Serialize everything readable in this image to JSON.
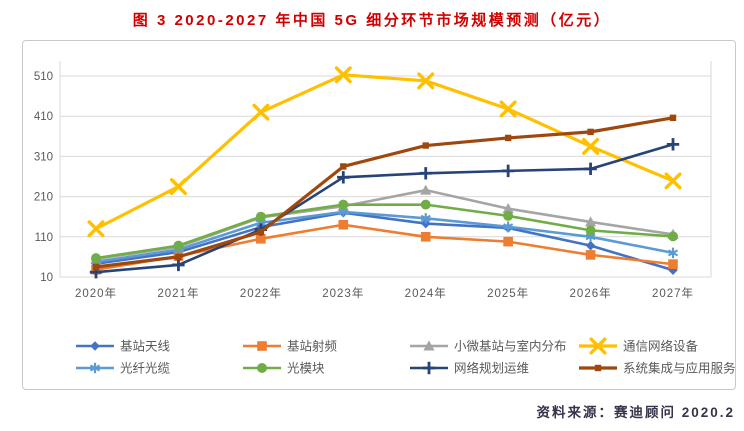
{
  "title": "图 3 2020-2027 年中国 5G 细分环节市场规模预测（亿元）",
  "source_note": "资料来源：赛迪顾问  2020.2",
  "colors": {
    "title_red": "#d00000",
    "grid_gray": "#d9d9d9",
    "axis_text": "#595959",
    "source_text": "#35354a"
  },
  "chart_data": {
    "type": "line",
    "title": "图 3 2020-2027 年中国 5G 细分环节市场规模预测（亿元）",
    "categories": [
      "2020年",
      "2021年",
      "2022年",
      "2023年",
      "2024年",
      "2025年",
      "2026年",
      "2027年"
    ],
    "y_ticks": [
      10,
      110,
      210,
      310,
      410,
      510
    ],
    "ylim": [
      10,
      545
    ],
    "grid": true,
    "legend_position": "bottom",
    "series": [
      {
        "name": "基站天线",
        "key": "base-station-antenna",
        "color": "#4472C4",
        "marker": "diamond",
        "values": [
          43,
          72,
          134,
          170,
          143,
          132,
          88,
          27
        ]
      },
      {
        "name": "基站射频",
        "key": "base-station-rf",
        "color": "#ED7D31",
        "marker": "square",
        "values": [
          28,
          62,
          105,
          140,
          110,
          98,
          65,
          42
        ]
      },
      {
        "name": "小微基站与室内分布",
        "key": "small-cell-indoor",
        "color": "#A5A5A5",
        "marker": "triangle",
        "values": [
          55,
          85,
          158,
          186,
          226,
          180,
          147,
          116
        ]
      },
      {
        "name": "通信网络设备",
        "key": "network-equipment",
        "color": "#FFC000",
        "marker": "x",
        "values": [
          130,
          235,
          420,
          513,
          498,
          428,
          335,
          249
        ]
      },
      {
        "name": "光纤光缆",
        "key": "optical-fiber-cable",
        "color": "#5B9BD5",
        "marker": "asterisk",
        "values": [
          48,
          78,
          145,
          172,
          156,
          135,
          110,
          70
        ]
      },
      {
        "name": "光模块",
        "key": "optical-module",
        "color": "#70AD47",
        "marker": "circle",
        "values": [
          57,
          88,
          160,
          190,
          190,
          162,
          126,
          111
        ]
      },
      {
        "name": "网络规划运维",
        "key": "network-planning-ops",
        "color": "#264478",
        "marker": "plus",
        "values": [
          22,
          40,
          128,
          258,
          268,
          274,
          279,
          340
        ]
      },
      {
        "name": "系统集成与应用服务",
        "key": "system-integration-services",
        "color": "#9E480E",
        "marker": "square-small",
        "values": [
          35,
          60,
          122,
          285,
          337,
          356,
          371,
          406
        ]
      }
    ]
  }
}
